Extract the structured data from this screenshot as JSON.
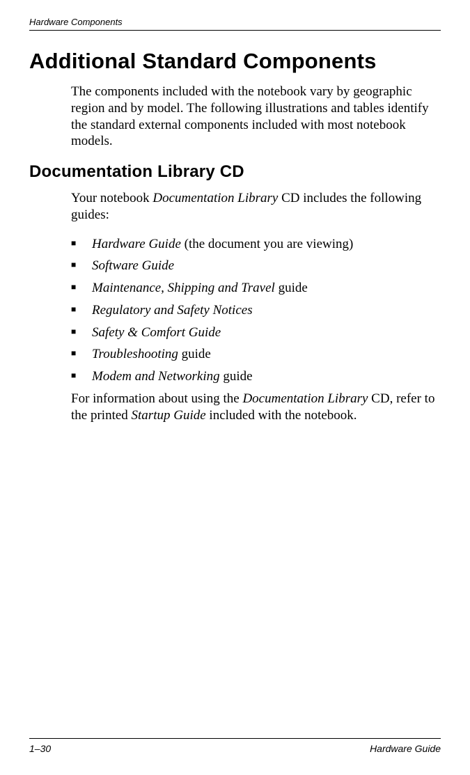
{
  "runningHeader": "Hardware Components",
  "title": "Additional Standard Components",
  "introPara": "The components included with the notebook vary by geographic region and by model. The following illustrations and tables identify the standard external components included with most notebook models.",
  "section2Title": "Documentation Library CD",
  "section2Intro_a": "Your notebook ",
  "section2Intro_b": "Documentation Library",
  "section2Intro_c": " CD includes the following guides:",
  "bullets": {
    "b1_a": "Hardware Guide",
    "b1_b": " (the document you are viewing)",
    "b2": "Software Guide",
    "b3_a": "Maintenance, Shipping and Travel",
    "b3_b": " guide",
    "b4": "Regulatory and Safety Notices",
    "b5": "Safety & Comfort Guide",
    "b6_a": "Troubleshooting",
    "b6_b": " guide",
    "b7_a": "Modem and Networking",
    "b7_b": " guide"
  },
  "closing_a": "For information about using the ",
  "closing_b": "Documentation Library",
  "closing_c": " CD, refer to the printed ",
  "closing_d": "Startup Guide",
  "closing_e": " included with the notebook.",
  "footer": {
    "left": "1–30",
    "right": "Hardware Guide"
  }
}
